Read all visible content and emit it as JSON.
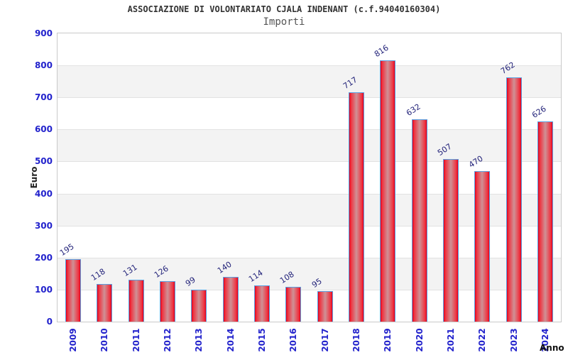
{
  "chart_data": {
    "type": "bar",
    "title": "ASSOCIAZIONE DI VOLONTARIATO CJALA INDENANT (c.f.94040160304)",
    "subtitle": "Importi",
    "xlabel": "Anno",
    "ylabel": "Euro",
    "categories": [
      "2009",
      "2010",
      "2011",
      "2012",
      "2013",
      "2014",
      "2015",
      "2016",
      "2017",
      "2018",
      "2019",
      "2020",
      "2021",
      "2022",
      "2023",
      "2024"
    ],
    "values": [
      195,
      118,
      131,
      126,
      99,
      140,
      114,
      108,
      95,
      717,
      816,
      632,
      507,
      470,
      762,
      626
    ],
    "ylim": [
      0,
      900
    ],
    "ytick_step": 100,
    "yticks": [
      0,
      100,
      200,
      300,
      400,
      500,
      600,
      700,
      800,
      900
    ],
    "grid": "horizontal alternating gray bands every 100, gridlines every 100",
    "legend": "none",
    "colors": {
      "bar_edge": "#e2001d",
      "bar_mid_red": "#ef3340",
      "bar_center": "#cf9196",
      "bar_border": "#5a9fe0",
      "axis_tick_blue": "#2222cc",
      "value_label_navy": "#23237a",
      "band_gray": "#f3f3f3",
      "grid_line": "#e2e2e2",
      "plot_border": "#c9c9c9",
      "title_color": "#333333",
      "subtitle_color": "#555555",
      "axis_title_color": "#222222"
    }
  }
}
